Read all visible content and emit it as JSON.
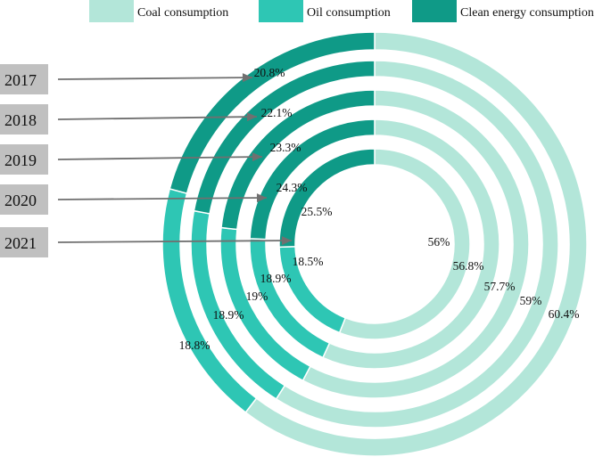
{
  "chart_data": {
    "type": "pie",
    "subtype": "concentric-ring",
    "title": "",
    "legend_position": "top",
    "series": [
      {
        "name": "Coal consumption",
        "color": "#b3e6d9"
      },
      {
        "name": "Oil consumption",
        "color": "#2ec6b4"
      },
      {
        "name": "Clean energy consumption",
        "color": "#0f9a87"
      }
    ],
    "rings": [
      {
        "year": "2017",
        "values": [
          60.4,
          18.8,
          20.8
        ],
        "labels": [
          "60.4%",
          "18.8%",
          "20.8%"
        ]
      },
      {
        "year": "2018",
        "values": [
          59.0,
          18.9,
          22.1
        ],
        "labels": [
          "59%",
          "18.9%",
          "22.1%"
        ]
      },
      {
        "year": "2019",
        "values": [
          57.7,
          19.0,
          23.3
        ],
        "labels": [
          "57.7%",
          "19%",
          "23.3%"
        ]
      },
      {
        "year": "2020",
        "values": [
          56.8,
          18.9,
          24.3
        ],
        "labels": [
          "56.8%",
          "18.9%",
          "24.3%"
        ]
      },
      {
        "year": "2021",
        "values": [
          56.0,
          18.5,
          25.5
        ],
        "labels": [
          "56%",
          "18.5%",
          "25.5%"
        ]
      }
    ],
    "year_box_color": "#c0c0c0",
    "arrow_color": "#707070"
  }
}
